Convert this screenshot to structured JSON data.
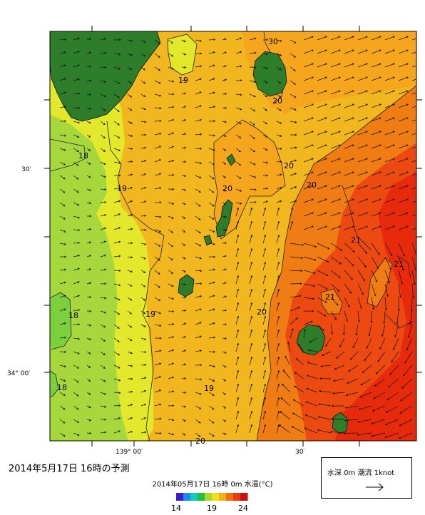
{
  "map": {
    "lat_labels": [
      "30′",
      "34° 00′"
    ],
    "lon_labels": [
      "139° 00′",
      "30′"
    ],
    "contour_labels": [
      "30",
      "19",
      "20",
      "18",
      "20",
      "20",
      "19",
      "20",
      "21",
      "21",
      "21",
      "18",
      "19",
      "20",
      "18",
      "19",
      "20"
    ],
    "colors": {
      "land": "#2e7d2a",
      "t18": "#a6d83e",
      "t19": "#e4e82a",
      "t20": "#f2c21c",
      "t20b": "#f5a61c",
      "t21": "#f07c14",
      "t22": "#ec4a10",
      "t23": "#e82a0c"
    }
  },
  "caption": "2014年5月17日 16時の予測",
  "colorbar": {
    "title": "2014年05月17日 16時 0m 水温(°C)",
    "ticks": [
      "14",
      "19",
      "24"
    ],
    "colors": [
      "#3a1fd0",
      "#1a8ce8",
      "#16c8c0",
      "#20c040",
      "#a8d830",
      "#f0e020",
      "#f4b018",
      "#f07010",
      "#e83a0c",
      "#c8100c"
    ]
  },
  "legend": {
    "text": "水深 0m 潮流 1knot",
    "arrow_icon": "arrow-right-icon"
  }
}
